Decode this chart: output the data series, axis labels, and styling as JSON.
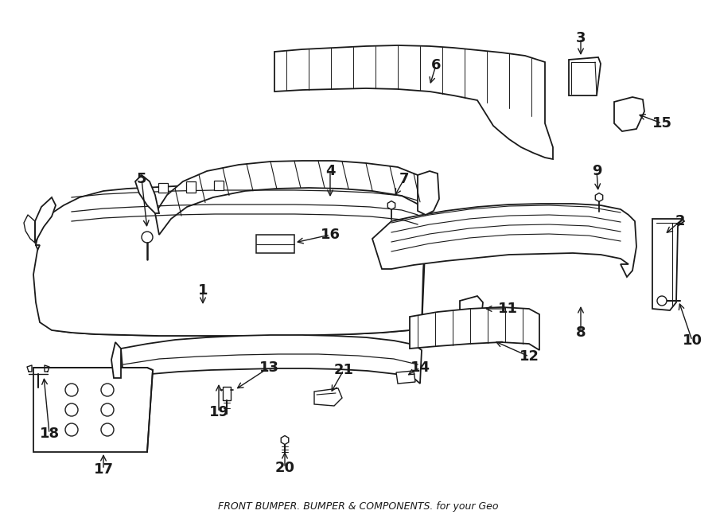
{
  "title": "FRONT BUMPER. BUMPER & COMPONENTS. for your Geo",
  "bg_color": "#ffffff",
  "line_color": "#1a1a1a",
  "fig_w": 9.0,
  "fig_h": 6.61,
  "dpi": 100
}
